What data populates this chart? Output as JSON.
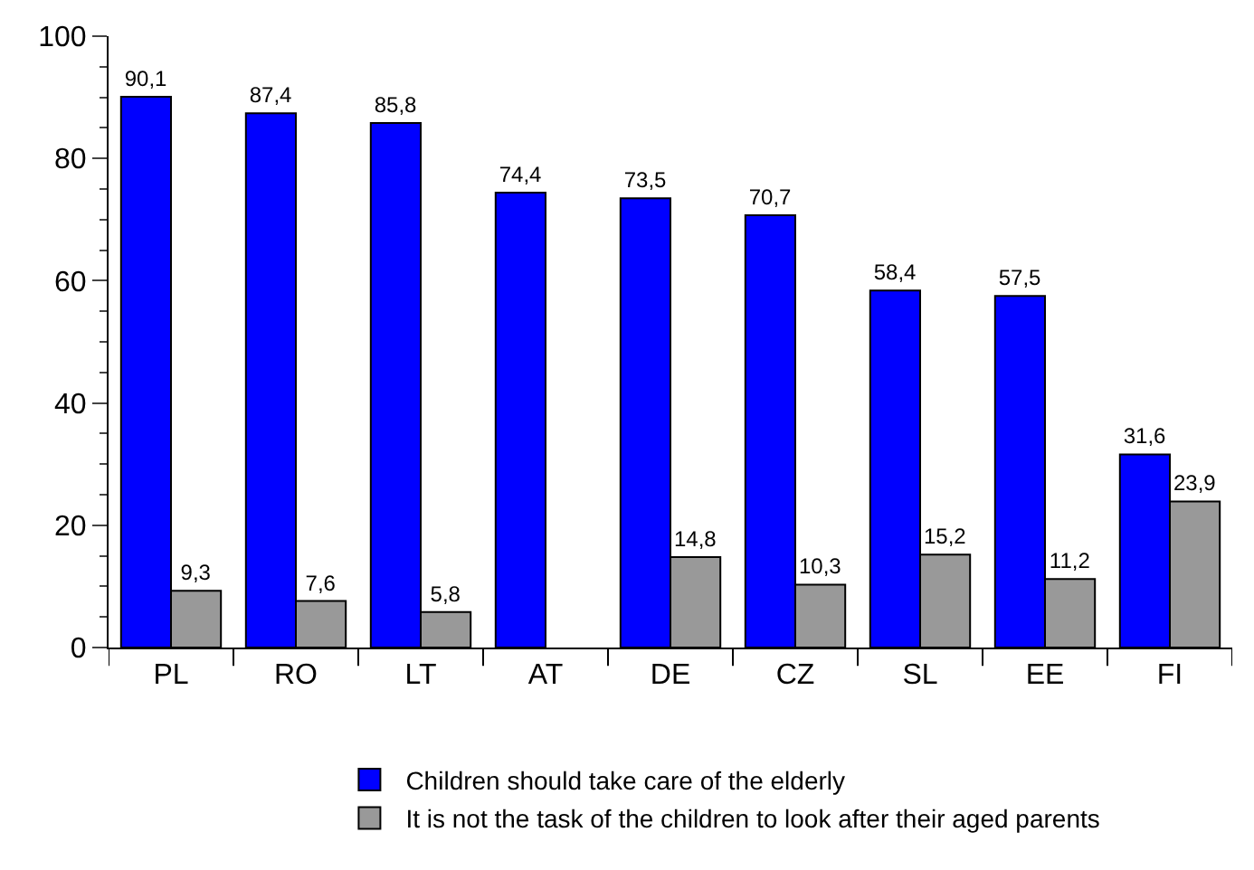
{
  "chart_data": {
    "type": "bar",
    "categories": [
      "PL",
      "RO",
      "LT",
      "AT",
      "DE",
      "CZ",
      "SL",
      "EE",
      "FI"
    ],
    "series": [
      {
        "name": "Children should take care of the elderly",
        "color": "#0000ff",
        "values": [
          90.1,
          87.4,
          85.8,
          74.4,
          73.5,
          70.7,
          58.4,
          57.5,
          31.6
        ],
        "value_labels": [
          "90,1",
          "87,4",
          "85,8",
          "74,4",
          "73,5",
          "70,7",
          "58,4",
          "57,5",
          "31,6"
        ]
      },
      {
        "name": "It is not the task of the children to look after their aged parents",
        "color": "#999999",
        "values": [
          9.3,
          7.6,
          5.8,
          null,
          14.8,
          10.3,
          15.2,
          11.2,
          23.9
        ],
        "value_labels": [
          "9,3",
          "7,6",
          "5,8",
          null,
          "14,8",
          "10,3",
          "15,2",
          "11,2",
          "23,9"
        ]
      }
    ],
    "ylim": [
      0,
      100
    ],
    "yticks": [
      0,
      20,
      40,
      60,
      80,
      100
    ],
    "legend": "bottom"
  }
}
